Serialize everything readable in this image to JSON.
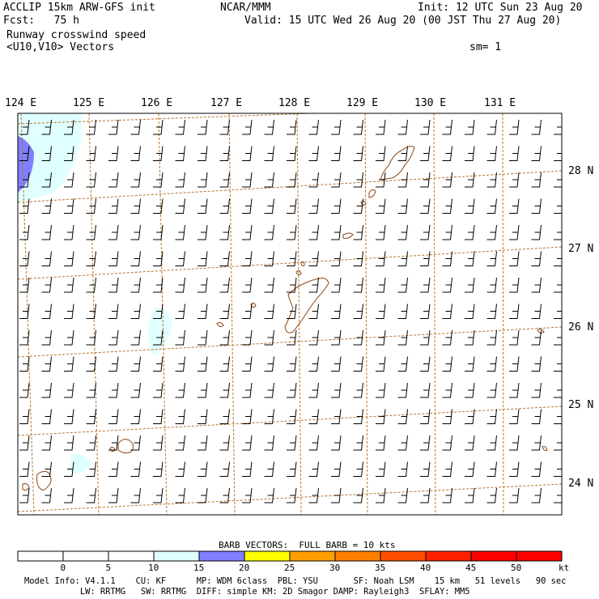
{
  "header": {
    "left1": "ACCLIP 15km ARW-GFS init",
    "left2": "Fcst:   75 h",
    "center": "NCAR/MMM",
    "init": "Init: 12 UTC Sun 23 Aug 20",
    "valid": "Valid: 15 UTC Wed 26 Aug 20 (00 JST Thu 27 Aug 20)",
    "field1": "Runway crosswind speed",
    "field2": "<U10,V10> Vectors",
    "sm": "sm= 1"
  },
  "map": {
    "lon_labels": [
      "124 E",
      "125 E",
      "126 E",
      "127 E",
      "128 E",
      "129 E",
      "130 E",
      "131 E"
    ],
    "lat_labels": [
      "28 N",
      "27 N",
      "26 N",
      "25 N",
      "24 N"
    ]
  },
  "colorbar": {
    "title": "BARB VECTORS:  FULL BARB = 10 kts",
    "ticks": [
      "0",
      "5",
      "10",
      "15",
      "20",
      "25",
      "30",
      "35",
      "40",
      "45",
      "50"
    ],
    "unit": "kt",
    "colors": [
      "#ffffff",
      "#ffffff",
      "#ffffff",
      "#e0ffff",
      "#7f7fff",
      "#ffff00",
      "#ffa000",
      "#ff8000",
      "#ff5000",
      "#ff2000",
      "#ff0000",
      "#ff0000"
    ]
  },
  "footer": {
    "line1": "Model Info: V4.1.1    CU: KF      MP: WDM 6class  PBL: YSU       SF: Noah LSM    15 km   51 levels   90 sec",
    "line2": "           LW: RRTMG   SW: RRTMG  DIFF: simple KM: 2D Smagor DAMP: Rayleigh3  SFLAY: MM5"
  }
}
